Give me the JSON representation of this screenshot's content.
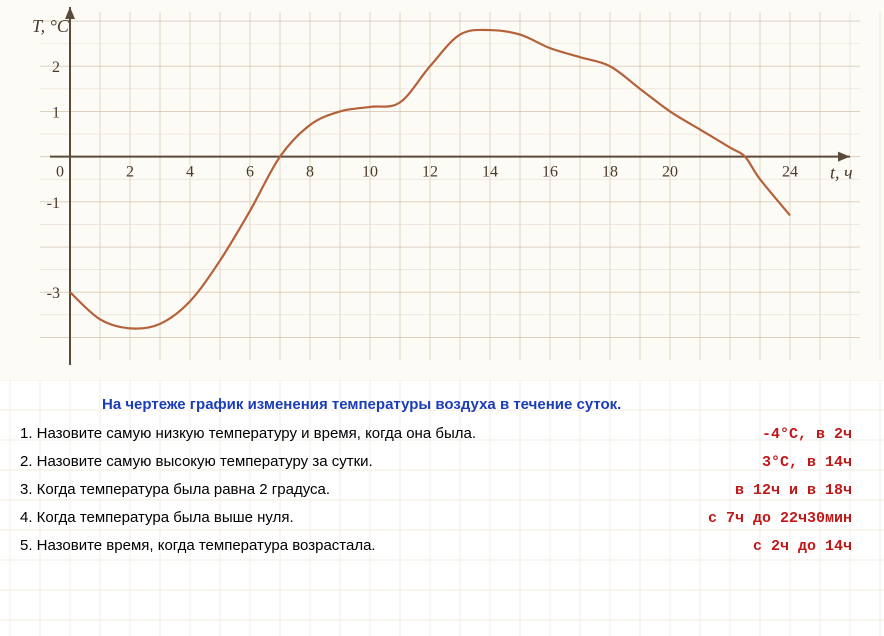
{
  "chart": {
    "type": "line",
    "background_color": "#fdfbf6",
    "grid_color": "#d9cbb8",
    "grid_minor_color": "#e8ddd0",
    "axis_color": "#5a4a3a",
    "curve_color": "#b5613a",
    "curve_width": 2.2,
    "text_color": "#4a3a2a",
    "y_label": "T, °C",
    "x_label": "t, ч",
    "x_ticks": [
      0,
      2,
      4,
      6,
      8,
      10,
      12,
      14,
      16,
      18,
      20,
      24
    ],
    "y_ticks": [
      -3,
      -1,
      1,
      2
    ],
    "x_range": [
      0,
      25
    ],
    "y_range": [
      -4.5,
      3.2
    ],
    "axis_fontsize": 18,
    "tick_fontsize": 16,
    "curve_points": [
      {
        "x": 0,
        "y": -3.0
      },
      {
        "x": 1,
        "y": -3.6
      },
      {
        "x": 2,
        "y": -3.8
      },
      {
        "x": 3,
        "y": -3.7
      },
      {
        "x": 4,
        "y": -3.2
      },
      {
        "x": 5,
        "y": -2.3
      },
      {
        "x": 6,
        "y": -1.2
      },
      {
        "x": 7,
        "y": 0.0
      },
      {
        "x": 8,
        "y": 0.7
      },
      {
        "x": 9,
        "y": 1.0
      },
      {
        "x": 10,
        "y": 1.1
      },
      {
        "x": 11,
        "y": 1.2
      },
      {
        "x": 12,
        "y": 2.0
      },
      {
        "x": 13,
        "y": 2.7
      },
      {
        "x": 14,
        "y": 2.8
      },
      {
        "x": 15,
        "y": 2.7
      },
      {
        "x": 16,
        "y": 2.4
      },
      {
        "x": 17,
        "y": 2.2
      },
      {
        "x": 18,
        "y": 2.0
      },
      {
        "x": 19,
        "y": 1.5
      },
      {
        "x": 20,
        "y": 1.0
      },
      {
        "x": 21,
        "y": 0.6
      },
      {
        "x": 22,
        "y": 0.2
      },
      {
        "x": 22.5,
        "y": 0.0
      },
      {
        "x": 23,
        "y": -0.5
      },
      {
        "x": 24,
        "y": -1.3
      }
    ]
  },
  "questions": {
    "title_color": "#1a3db8",
    "answer_color": "#c01818",
    "title": "На чертеже график изменения температуры воздуха в течение суток.",
    "items": [
      {
        "q": "1. Назовите самую низкую температуру и время, когда она была.",
        "a": "-4°C, в 2ч"
      },
      {
        "q": "2. Назовите самую высокую температуру за сутки.",
        "a": "3°C, в 14ч"
      },
      {
        "q": "3. Когда температура была равна 2 градуса.",
        "a": "в 12ч и в 18ч"
      },
      {
        "q": "4. Когда температура была выше нуля.",
        "a": "с 7ч до 22ч30мин"
      },
      {
        "q": "5. Назовите время, когда температура возрастала.",
        "a": "с 2ч до 14ч"
      }
    ]
  }
}
